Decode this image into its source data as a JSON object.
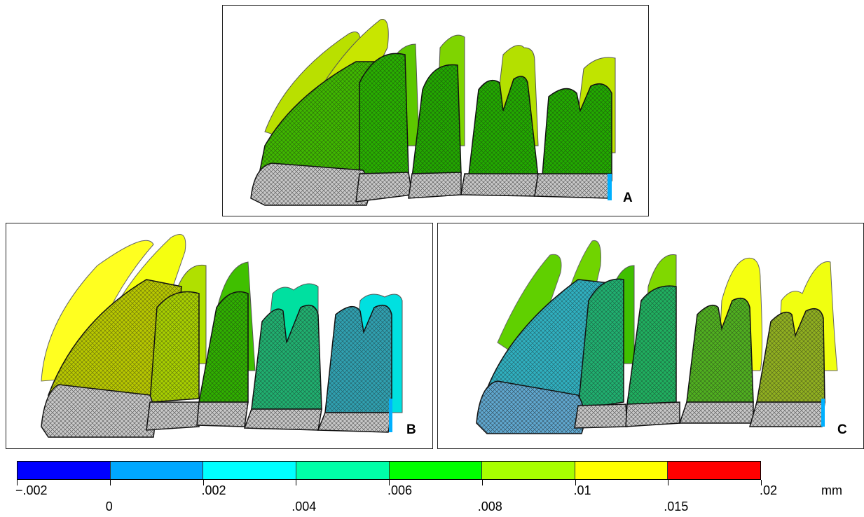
{
  "panels": [
    {
      "id": "A",
      "label": "A"
    },
    {
      "id": "B",
      "label": "B"
    },
    {
      "id": "C",
      "label": "C"
    }
  ],
  "legend": {
    "unit": "mm",
    "colors": [
      "#0000ff",
      "#00a8ff",
      "#00ffff",
      "#00ffa8",
      "#00ff00",
      "#a8ff00",
      "#ffff00",
      "#ff0000"
    ],
    "ticks_top": [
      "−.002",
      ".002",
      ".006",
      ".01",
      ".02"
    ],
    "ticks_bottom": [
      "0",
      ".004",
      ".008",
      ".015"
    ]
  },
  "colors": {
    "mesh": "#1a1a1a",
    "crown": "#c8c8c8"
  }
}
